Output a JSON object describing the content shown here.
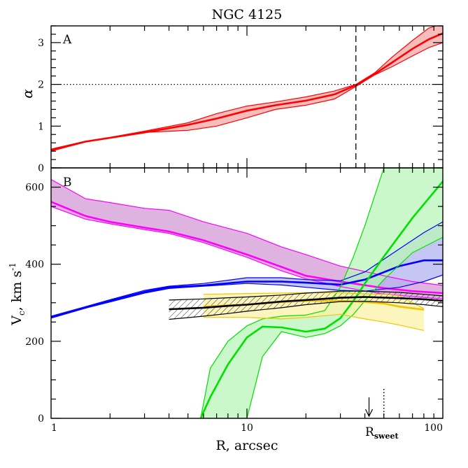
{
  "chart_data": [
    {
      "panel": "A",
      "type": "line",
      "title": "NGC 4125",
      "panel_label": "A",
      "xlabel": "",
      "ylabel": "α",
      "xscale": "log",
      "xlim": [
        1,
        100
      ],
      "ylim": [
        0,
        3.4
      ],
      "yticks": [
        0,
        1,
        2,
        3
      ],
      "ytick_labels": [
        "0",
        "1",
        "2",
        "3"
      ],
      "reference_lines": [
        {
          "orientation": "horizontal",
          "value": 2,
          "style": "dotted"
        },
        {
          "orientation": "vertical",
          "value": 36,
          "style": "dashed"
        }
      ],
      "series": [
        {
          "color": "#ff0000",
          "fill": "#f4a6a6",
          "x": [
            1,
            1.5,
            2,
            3,
            5,
            7,
            10,
            14,
            20,
            28,
            36,
            45,
            55,
            70,
            85,
            100
          ],
          "y": [
            0.43,
            0.63,
            0.72,
            0.85,
            1.03,
            1.18,
            1.37,
            1.5,
            1.61,
            1.76,
            1.98,
            2.25,
            2.52,
            2.85,
            3.08,
            3.22
          ],
          "lower": [
            0.4,
            0.62,
            0.72,
            0.85,
            0.9,
            1.0,
            1.2,
            1.4,
            1.5,
            1.65,
            1.95,
            2.23,
            2.42,
            2.68,
            2.88,
            3.0
          ],
          "upper": [
            0.45,
            0.64,
            0.73,
            0.88,
            1.08,
            1.3,
            1.48,
            1.58,
            1.7,
            1.84,
            2.0,
            2.28,
            2.65,
            3.05,
            3.35,
            3.45
          ]
        }
      ]
    },
    {
      "panel": "B",
      "type": "line",
      "panel_label": "B",
      "xlabel": "R, arcsec",
      "ylabel": "V_c, km s^-1",
      "ylabel_parts": {
        "main": "V",
        "sub": "c",
        "unit": ", km s",
        "sup": "-1"
      },
      "xscale": "log",
      "xlim": [
        1,
        100
      ],
      "ylim": [
        0,
        650
      ],
      "xticks": [
        1,
        10,
        100
      ],
      "xtick_labels": [
        "1",
        "10",
        "100"
      ],
      "yticks": [
        0,
        200,
        400,
        600
      ],
      "ytick_labels": [
        "0",
        "200",
        "400",
        "600"
      ],
      "annotations": {
        "r_sweet": {
          "main": "R",
          "sub": "sweet",
          "x": 42
        },
        "arrow_x": 42,
        "dotted_marker_x": 50
      },
      "series": [
        {
          "color": "#ff00ff",
          "fill": "#d39ad6",
          "x": [
            1,
            1.5,
            2,
            3,
            4,
            6,
            10,
            15,
            20,
            30,
            50,
            70,
            100
          ],
          "y": [
            562,
            525,
            510,
            495,
            485,
            462,
            425,
            393,
            370,
            355,
            338,
            330,
            325
          ],
          "lower": [
            550,
            517,
            505,
            490,
            480,
            456,
            418,
            383,
            362,
            342,
            322,
            316,
            310
          ],
          "upper": [
            620,
            570,
            560,
            545,
            540,
            510,
            480,
            445,
            425,
            395,
            370,
            355,
            345
          ]
        },
        {
          "color": "#0000ff",
          "fill": "#b3b3f0",
          "x": [
            1,
            1.5,
            2,
            3,
            4,
            6,
            10,
            15,
            20,
            30,
            40,
            60,
            80,
            100
          ],
          "y": [
            262,
            288,
            305,
            328,
            340,
            345,
            355,
            355,
            352,
            347,
            360,
            395,
            410,
            410
          ],
          "lower": [
            260,
            286,
            302,
            325,
            337,
            343,
            350,
            346,
            340,
            332,
            330,
            340,
            355,
            372
          ],
          "upper": [
            265,
            290,
            308,
            332,
            343,
            350,
            365,
            365,
            360,
            357,
            380,
            440,
            482,
            510
          ]
        },
        {
          "color": "#00e000",
          "fill": "#b8f5b8",
          "x": [
            5.8,
            6.5,
            8,
            10,
            12,
            15,
            20,
            25,
            30,
            35,
            40,
            50,
            70,
            100
          ],
          "y": [
            0,
            55,
            140,
            210,
            238,
            236,
            225,
            233,
            260,
            305,
            350,
            420,
            520,
            615
          ],
          "lower": [
            0,
            0,
            0,
            0,
            160,
            225,
            210,
            220,
            240,
            270,
            305,
            360,
            430,
            470
          ],
          "upper": [
            0,
            130,
            200,
            240,
            258,
            265,
            268,
            280,
            340,
            420,
            500,
            650,
            650,
            650
          ]
        },
        {
          "color": "#f5c400",
          "fill": "#fbf3a8",
          "x": [
            6,
            8,
            10,
            15,
            20,
            30,
            40,
            50,
            60,
            80
          ],
          "y": [
            290,
            293,
            295,
            302,
            305,
            305,
            302,
            298,
            290,
            282
          ],
          "lower": [
            262,
            262,
            262,
            258,
            262,
            270,
            258,
            250,
            242,
            228
          ],
          "upper": [
            322,
            323,
            324,
            325,
            326,
            326,
            323,
            322,
            318,
            285
          ]
        },
        {
          "color": "#000000",
          "fill": "hatched",
          "x": [
            4,
            6,
            8,
            10,
            15,
            20,
            30,
            40,
            60,
            80,
            100
          ],
          "y": [
            283,
            287,
            292,
            295,
            303,
            307,
            313,
            315,
            312,
            309,
            305
          ],
          "lower": [
            257,
            265,
            272,
            278,
            287,
            295,
            303,
            304,
            300,
            295,
            290
          ],
          "upper": [
            307,
            310,
            313,
            315,
            320,
            325,
            330,
            330,
            327,
            322,
            318
          ]
        }
      ]
    }
  ]
}
